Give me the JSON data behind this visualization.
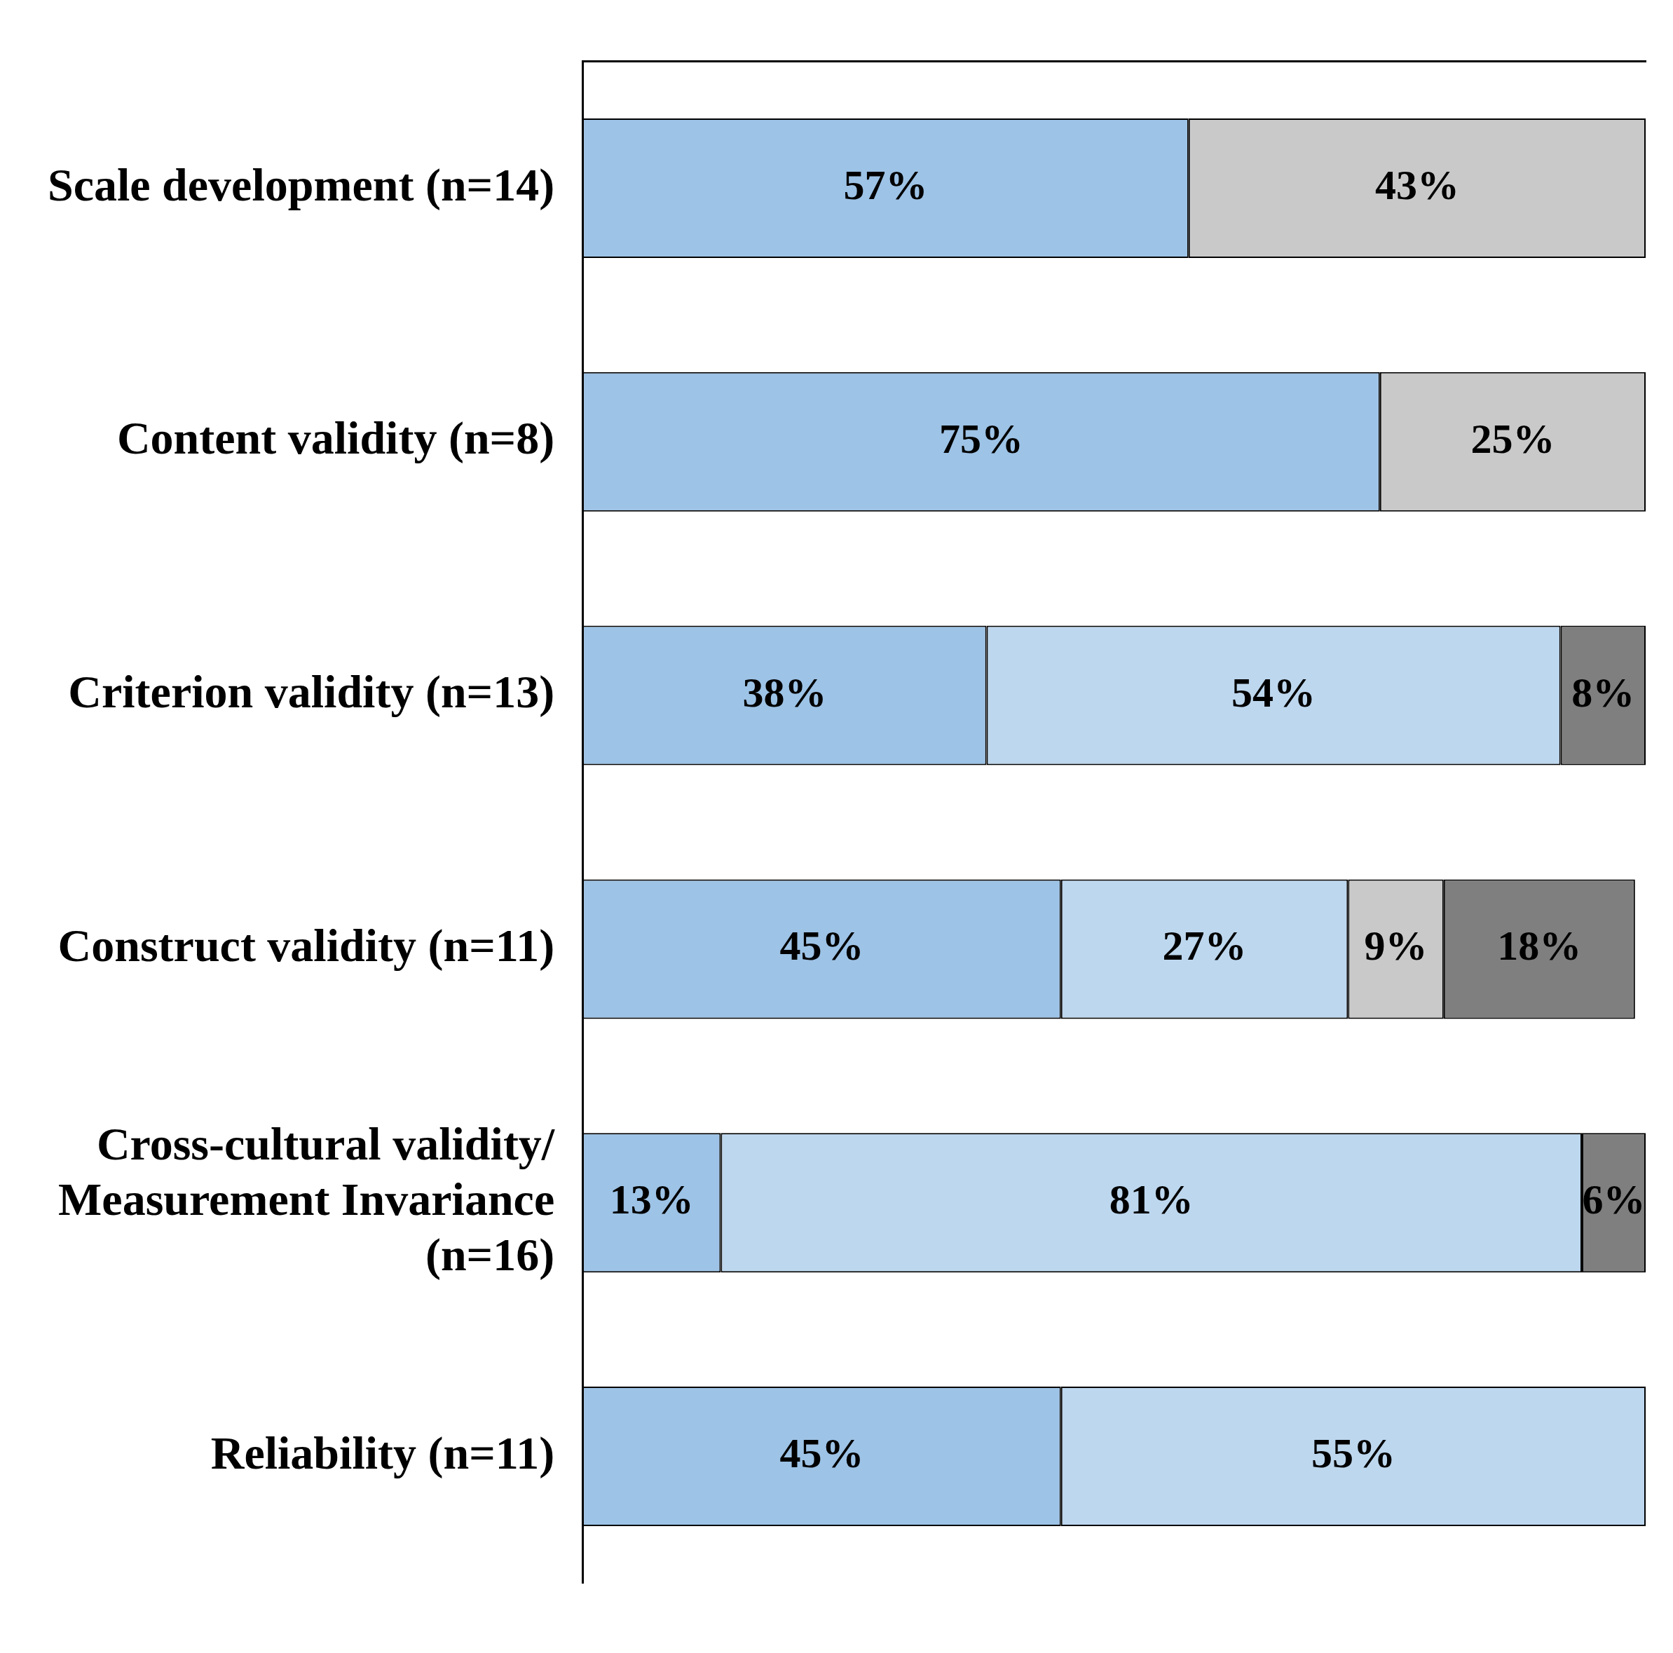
{
  "chart_data": {
    "type": "bar",
    "orientation": "horizontal",
    "stacked": true,
    "categories": [
      "Scale development (n=14)",
      "Content validity (n=8)",
      "Criterion validity (n=13)",
      "Construct validity (n=11)",
      "Cross-cultural validity/ Measurement Invariance (n=16)",
      "Reliability (n=11)"
    ],
    "series": [
      {
        "color": "#9dc3e6",
        "values": [
          57,
          75,
          38,
          45,
          13,
          45
        ],
        "value_labels": [
          "57%",
          "75%",
          "38%",
          "45%",
          "13%",
          "45%"
        ]
      },
      {
        "color": "#bdd7ee",
        "values": [
          null,
          null,
          54,
          27,
          81,
          55
        ],
        "value_labels": [
          null,
          null,
          "54%",
          "27%",
          "81%",
          "55%"
        ]
      },
      {
        "color": "#c9c9c9",
        "values": [
          43,
          25,
          null,
          9,
          null,
          null
        ],
        "value_labels": [
          "43%",
          "25%",
          null,
          "9%",
          null,
          null
        ]
      },
      {
        "color": "#7f7f7f",
        "values": [
          null,
          null,
          8,
          18,
          6,
          null
        ],
        "value_labels": [
          null,
          null,
          "8%",
          "18%",
          "6%",
          null
        ]
      }
    ],
    "xlim": [
      0,
      100
    ],
    "tick_labels": "y",
    "grid": false,
    "legend": false
  }
}
